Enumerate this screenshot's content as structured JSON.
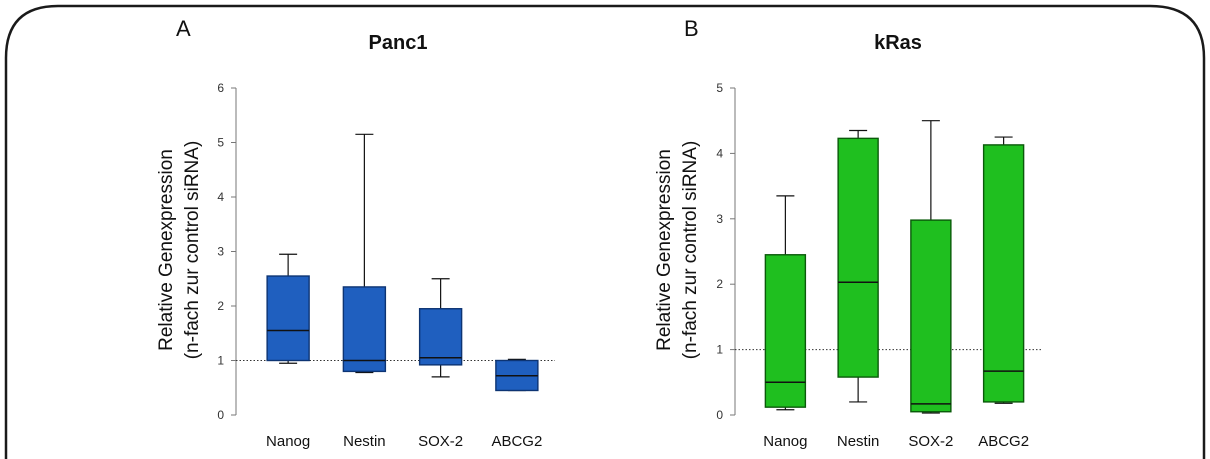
{
  "frame_color": "#1a1a1a",
  "chart_data": [
    {
      "type": "box",
      "panel_label": "A",
      "title": "Panc1",
      "ylabel_line1": "Relative Genexpression",
      "ylabel_line2": "(n-fach zur control siRNA)",
      "categories": [
        "Nanog",
        "Nestin",
        "SOX-2",
        "ABCG2"
      ],
      "ylim": [
        0,
        6
      ],
      "yticks": [
        "0",
        "1",
        "2",
        "3",
        "4",
        "5",
        "6"
      ],
      "reference_line": 1,
      "box_color": "#1f5fbf",
      "box_stroke": "#0d3473",
      "boxes": [
        {
          "min": 0.95,
          "q1": 1.0,
          "median": 1.55,
          "q3": 2.55,
          "max": 2.95
        },
        {
          "min": 0.78,
          "q1": 0.8,
          "median": 1.0,
          "q3": 2.35,
          "max": 5.15
        },
        {
          "min": 0.7,
          "q1": 0.92,
          "median": 1.05,
          "q3": 1.95,
          "max": 2.5
        },
        {
          "min": 0.45,
          "q1": 0.45,
          "median": 0.72,
          "q3": 1.0,
          "max": 1.02
        }
      ]
    },
    {
      "type": "box",
      "panel_label": "B",
      "title": "kRas",
      "ylabel_line1": "Relative Genexpression",
      "ylabel_line2": "(n-fach zur control siRNA)",
      "categories": [
        "Nanog",
        "Nestin",
        "SOX-2",
        "ABCG2"
      ],
      "ylim": [
        0,
        5
      ],
      "yticks": [
        "0",
        "1",
        "2",
        "3",
        "4",
        "5"
      ],
      "reference_line": 1,
      "box_color": "#1fbf1f",
      "box_stroke": "#0a5a0a",
      "boxes": [
        {
          "min": 0.08,
          "q1": 0.12,
          "median": 0.5,
          "q3": 2.45,
          "max": 3.35
        },
        {
          "min": 0.2,
          "q1": 0.58,
          "median": 2.03,
          "q3": 4.23,
          "max": 4.35
        },
        {
          "min": 0.03,
          "q1": 0.05,
          "median": 0.17,
          "q3": 2.98,
          "max": 4.5
        },
        {
          "min": 0.18,
          "q1": 0.2,
          "median": 0.67,
          "q3": 4.13,
          "max": 4.25
        }
      ]
    }
  ]
}
